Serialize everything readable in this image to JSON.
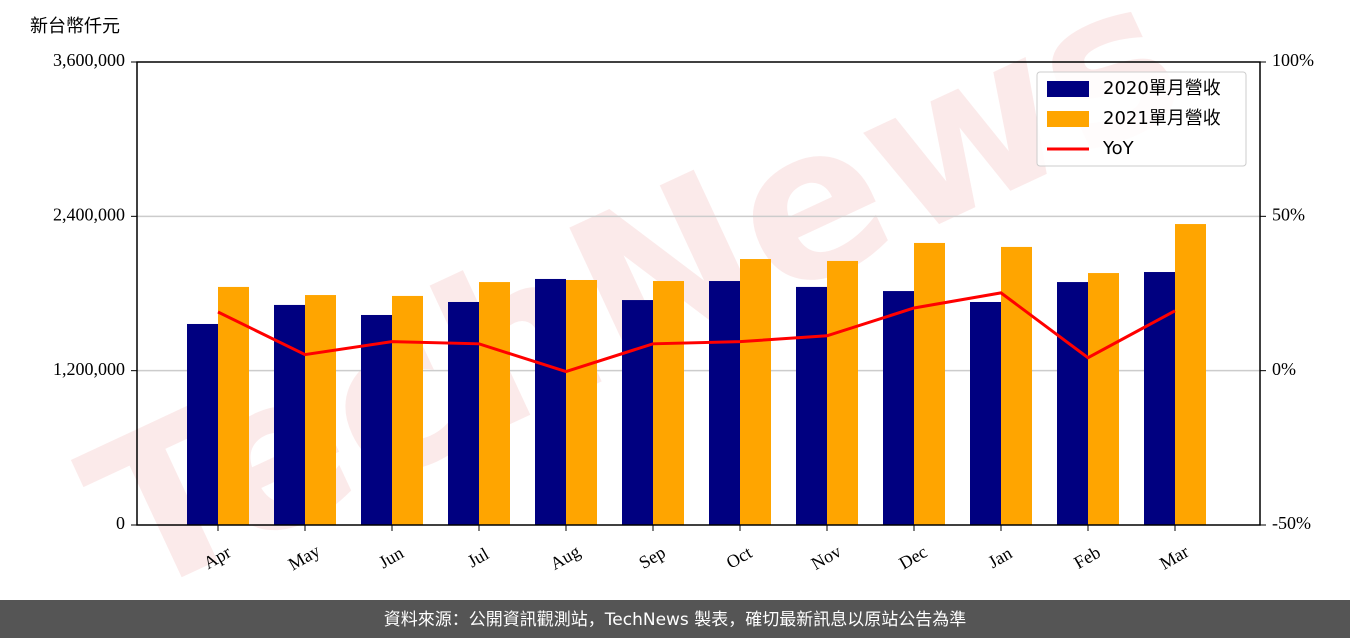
{
  "chart_data": {
    "type": "bar",
    "ylabel": "新台幣仟元",
    "watermark": "TechNews",
    "source": "資料來源：公開資訊觀測站，TechNews 製表，確切最新訊息以原站公告為準",
    "categories": [
      "Apr",
      "May",
      "Jun",
      "Jul",
      "Aug",
      "Sep",
      "Oct",
      "Nov",
      "Dec",
      "Jan",
      "Feb",
      "Mar"
    ],
    "series": [
      {
        "name": "2020單月營收",
        "color": "#000080",
        "type": "bar",
        "values": [
          1563000,
          1711000,
          1633000,
          1734000,
          1913000,
          1749000,
          1897000,
          1851000,
          1819000,
          1734000,
          1889000,
          1967000
        ]
      },
      {
        "name": "2021單月營收",
        "color": "#ffa500",
        "type": "bar",
        "values": [
          1851000,
          1788000,
          1781000,
          1889000,
          1905000,
          1897000,
          2068000,
          2053000,
          2193000,
          2162000,
          1959000,
          2340000
        ]
      },
      {
        "name": "YoY",
        "color": "#ff0000",
        "type": "line",
        "axis": "y2",
        "values": [
          19,
          5.2,
          9.4,
          8.7,
          -0.3,
          8.7,
          9.4,
          11.3,
          20.3,
          25.2,
          4.2,
          19.4
        ]
      }
    ],
    "ylim": [
      0,
      3600000
    ],
    "yticks": [
      0,
      {
        "value": 1200000,
        "label": "1,200,000"
      },
      {
        "value": 2400000,
        "label": "2,400,000"
      },
      {
        "value": 3600000,
        "label": "3,600,000"
      }
    ],
    "y2lim": [
      -50,
      100
    ],
    "y2ticks": [
      {
        "value": -50,
        "label": "-50%"
      },
      {
        "value": 0,
        "label": "0%"
      },
      {
        "value": 50,
        "label": "50%"
      },
      {
        "value": 100,
        "label": "100%"
      }
    ],
    "grid": true,
    "legend": "upper right"
  }
}
